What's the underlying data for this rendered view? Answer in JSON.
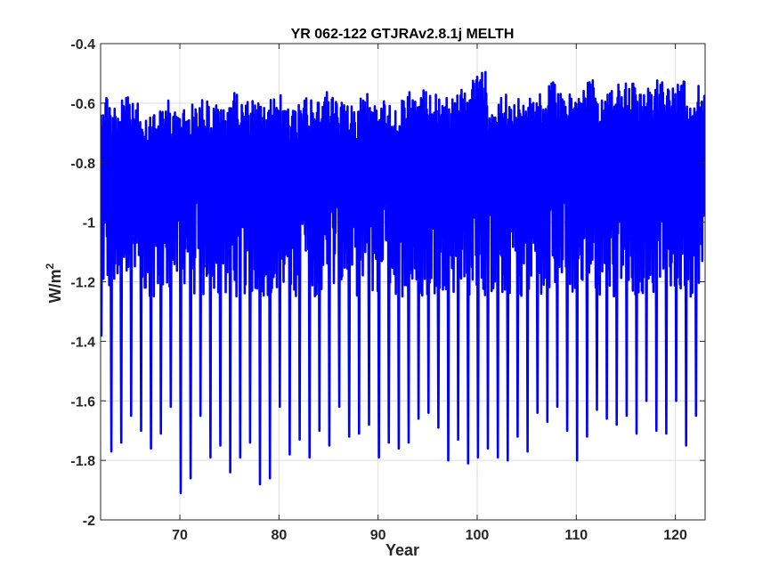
{
  "chart_data": {
    "type": "line",
    "title": "YR 062-122 GTJRAv2.8.1j MELTH",
    "xlabel": "Year",
    "ylabel": "W/m",
    "ylabel_superscript": "2",
    "xlim": [
      62,
      123
    ],
    "ylim": [
      -2,
      -0.4
    ],
    "xticks": [
      70,
      80,
      90,
      100,
      110,
      120
    ],
    "yticks": [
      -2,
      -1.8,
      -1.6,
      -1.4,
      -1.2,
      -1,
      -0.8,
      -0.6,
      -0.4
    ],
    "xtick_labels": [
      "70",
      "80",
      "90",
      "100",
      "110",
      "120"
    ],
    "ytick_labels": [
      "-2",
      "-1.8",
      "-1.6",
      "-1.4",
      "-1.2",
      "-1",
      "-0.8",
      "-0.6",
      "-0.4"
    ],
    "grid": true,
    "line_color": "#0000ff",
    "series": [
      {
        "description_values_per_year": "annual envelope: min (winter trough) and max (summer peak) per year",
        "years": [
          62,
          63,
          64,
          65,
          66,
          67,
          68,
          69,
          70,
          71,
          72,
          73,
          74,
          75,
          76,
          77,
          78,
          79,
          80,
          81,
          82,
          83,
          84,
          85,
          86,
          87,
          88,
          89,
          90,
          91,
          92,
          93,
          94,
          95,
          96,
          97,
          98,
          99,
          100,
          101,
          102,
          103,
          104,
          105,
          106,
          107,
          108,
          109,
          110,
          111,
          112,
          113,
          114,
          115,
          116,
          117,
          118,
          119,
          120,
          121,
          122
        ],
        "annual_min": [
          -1.38,
          -1.77,
          -1.74,
          -1.65,
          -1.7,
          -1.76,
          -1.71,
          -1.62,
          -1.91,
          -1.86,
          -1.65,
          -1.79,
          -1.75,
          -1.84,
          -1.79,
          -1.74,
          -1.88,
          -1.86,
          -1.62,
          -1.78,
          -1.73,
          -1.79,
          -1.7,
          -1.75,
          -1.62,
          -1.72,
          -1.71,
          -1.68,
          -1.79,
          -1.74,
          -1.76,
          -1.74,
          -1.66,
          -1.64,
          -1.69,
          -1.8,
          -1.73,
          -1.81,
          -1.79,
          -1.76,
          -1.79,
          -1.8,
          -1.72,
          -1.77,
          -1.64,
          -1.67,
          -1.62,
          -1.7,
          -1.8,
          -1.72,
          -1.63,
          -1.66,
          -1.68,
          -1.65,
          -1.71,
          -1.6,
          -1.7,
          -1.71,
          -1.6,
          -1.75,
          -1.65
        ],
        "annual_max": [
          -0.56,
          -0.6,
          -0.58,
          -0.6,
          -0.63,
          -0.61,
          -0.59,
          -0.62,
          -0.62,
          -0.6,
          -0.58,
          -0.6,
          -0.61,
          -0.56,
          -0.59,
          -0.59,
          -0.6,
          -0.58,
          -0.57,
          -0.61,
          -0.58,
          -0.59,
          -0.56,
          -0.57,
          -0.58,
          -0.61,
          -0.55,
          -0.6,
          -0.58,
          -0.6,
          -0.59,
          -0.56,
          -0.55,
          -0.57,
          -0.58,
          -0.57,
          -0.55,
          -0.52,
          -0.49,
          -0.58,
          -0.56,
          -0.6,
          -0.58,
          -0.56,
          -0.57,
          -0.53,
          -0.56,
          -0.55,
          -0.55,
          -0.52,
          -0.59,
          -0.55,
          -0.53,
          -0.53,
          -0.57,
          -0.55,
          -0.52,
          -0.54,
          -0.52,
          -0.56,
          -0.54
        ]
      }
    ]
  }
}
